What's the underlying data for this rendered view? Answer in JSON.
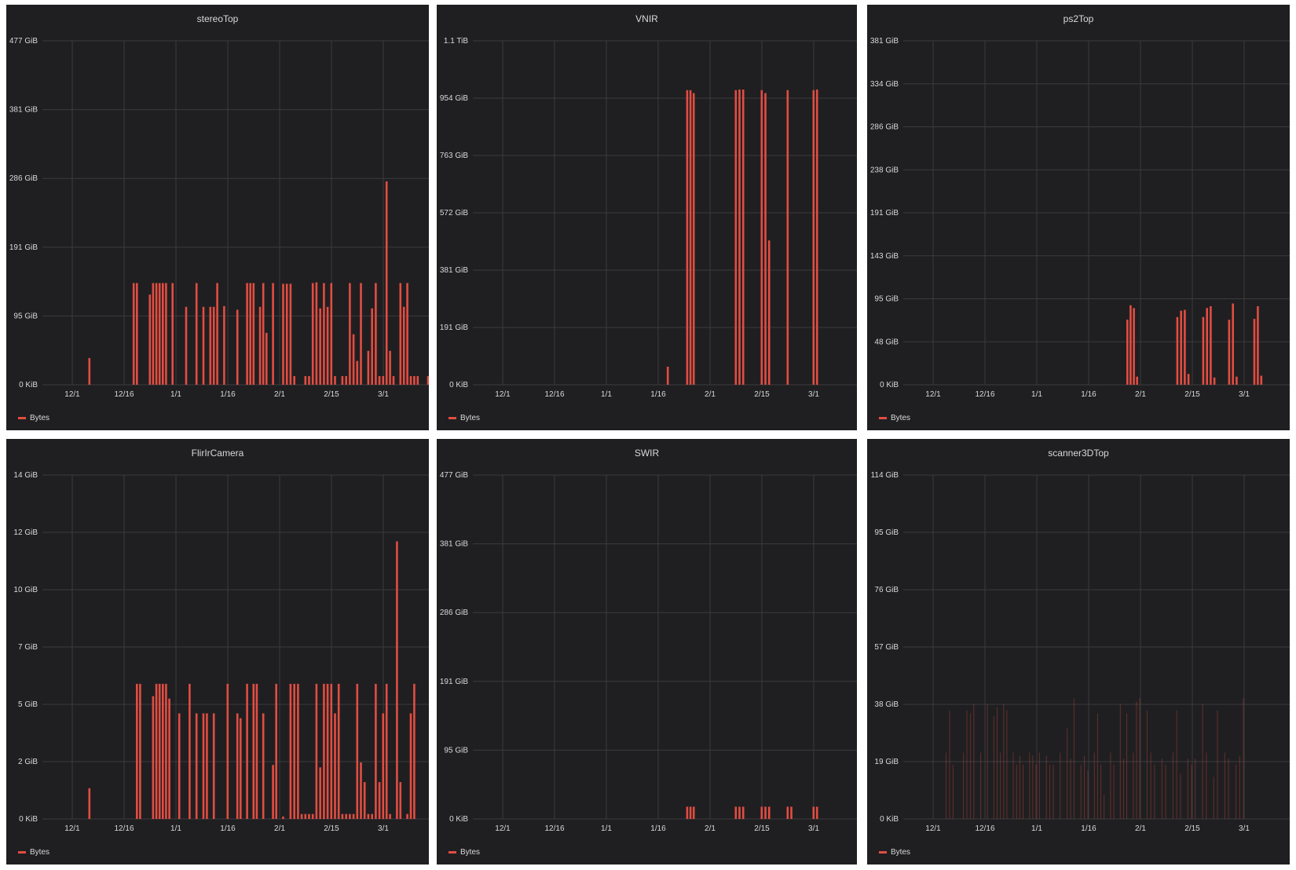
{
  "colors": {
    "series": "#e24d42",
    "panel_bg": "#1f1f21",
    "grid": "#3b3b3e",
    "text": "#d8d9da"
  },
  "chart_data": [
    {
      "type": "bar",
      "title": "stereoTop",
      "legend": "Bytes",
      "legend_position": "bottom-left",
      "grid": true,
      "x_ticks": [
        "12/1",
        "12/16",
        "1/1",
        "1/16",
        "2/1",
        "2/15",
        "3/1",
        "3/"
      ],
      "y_ticks": [
        "0 KiB",
        "95 GiB",
        "191 GiB",
        "286 GiB",
        "381 GiB",
        "477 GiB"
      ],
      "ylim": [
        0,
        477
      ],
      "y_unit": "GiB",
      "series": [
        {
          "name": "Bytes",
          "x_day": [
            5,
            18,
            19,
            23,
            24,
            25,
            26,
            27,
            28,
            30,
            34,
            37,
            39,
            41,
            42,
            43,
            45,
            49,
            52,
            53,
            54,
            56,
            57,
            58,
            60,
            63,
            64,
            65,
            66,
            69,
            70,
            71,
            72,
            73,
            74,
            75,
            76,
            77,
            79,
            80,
            81,
            82,
            83,
            84,
            86,
            87,
            88,
            89,
            90,
            91,
            92,
            93,
            95,
            96,
            97,
            98,
            99,
            100,
            103,
            104,
            106,
            108,
            109
          ],
          "values": [
            37,
            141,
            141,
            125,
            141,
            141,
            141,
            141,
            141,
            141,
            108,
            141,
            108,
            108,
            108,
            141,
            109,
            104,
            141,
            141,
            141,
            108,
            141,
            72,
            141,
            140,
            140,
            140,
            12,
            12,
            12,
            141,
            142,
            106,
            141,
            108,
            141,
            12,
            12,
            12,
            141,
            70,
            33,
            141,
            47,
            106,
            141,
            12,
            12,
            282,
            47,
            12,
            141,
            108,
            141,
            12,
            12,
            12,
            12,
            12,
            12,
            12,
            12
          ]
        }
      ]
    },
    {
      "type": "bar",
      "title": "VNIR",
      "legend": "Bytes",
      "legend_position": "bottom-left",
      "grid": true,
      "x_ticks": [
        "12/1",
        "12/16",
        "1/1",
        "1/16",
        "2/1",
        "2/15",
        "3/1",
        "3/"
      ],
      "y_ticks": [
        "0 KiB",
        "191 GiB",
        "381 GiB",
        "572 GiB",
        "763 GiB",
        "954 GiB",
        "1.1 TiB"
      ],
      "ylim": [
        0,
        1144
      ],
      "y_unit": "GiB",
      "series": [
        {
          "name": "Bytes",
          "x_day": [
            49,
            55,
            56,
            57,
            69,
            70,
            71,
            76,
            77,
            78,
            83,
            90,
            91
          ],
          "values": [
            60,
            980,
            980,
            970,
            980,
            982,
            982,
            980,
            970,
            480,
            980,
            980,
            982
          ]
        }
      ]
    },
    {
      "type": "bar",
      "title": "ps2Top",
      "legend": "Bytes",
      "legend_position": "bottom-left",
      "grid": true,
      "x_ticks": [
        "12/1",
        "12/16",
        "1/1",
        "1/16",
        "2/1",
        "2/15",
        "3/1"
      ],
      "y_ticks": [
        "0 KiB",
        "48 GiB",
        "95 GiB",
        "143 GiB",
        "191 GiB",
        "238 GiB",
        "286 GiB",
        "334 GiB",
        "381 GiB"
      ],
      "ylim": [
        0,
        381
      ],
      "y_unit": "GiB",
      "series": [
        {
          "name": "Bytes",
          "x_day": [
            58,
            59,
            60,
            61,
            72,
            73,
            74,
            75,
            79,
            80,
            81,
            82,
            86,
            87,
            88,
            93,
            94,
            95
          ],
          "values": [
            72,
            88,
            85,
            9,
            75,
            82,
            83,
            12,
            75,
            85,
            87,
            8,
            72,
            90,
            9,
            73,
            87,
            10
          ]
        }
      ]
    },
    {
      "type": "bar",
      "title": "FlirIrCamera",
      "legend": "Bytes",
      "legend_position": "bottom-left",
      "grid": true,
      "x_ticks": [
        "12/1",
        "12/16",
        "1/1",
        "1/16",
        "2/1",
        "2/15",
        "3/1",
        "3/"
      ],
      "y_ticks": [
        "0 KiB",
        "2 GiB",
        "5 GiB",
        "7 GiB",
        "10 GiB",
        "12 GiB",
        "14 GiB"
      ],
      "ylim": [
        0,
        14.0
      ],
      "y_unit": "GiB",
      "series": [
        {
          "name": "Bytes",
          "x_day": [
            5,
            19,
            20,
            24,
            25,
            26,
            27,
            28,
            29,
            32,
            35,
            37,
            39,
            40,
            42,
            46,
            49,
            50,
            52,
            54,
            55,
            57,
            60,
            61,
            63,
            65,
            66,
            67,
            68,
            69,
            70,
            71,
            72,
            73,
            74,
            75,
            76,
            77,
            78,
            79,
            80,
            81,
            82,
            83,
            84,
            85,
            86,
            87,
            88,
            89,
            90,
            91,
            92,
            94,
            95,
            97,
            98,
            99
          ],
          "values": [
            1.25,
            5.5,
            5.5,
            5.0,
            5.5,
            5.5,
            5.5,
            5.5,
            4.9,
            4.3,
            5.5,
            4.3,
            4.3,
            4.3,
            4.3,
            5.5,
            4.3,
            4.1,
            5.5,
            5.5,
            5.5,
            4.3,
            2.2,
            5.5,
            0.1,
            5.5,
            5.5,
            5.5,
            0.2,
            0.2,
            0.2,
            0.2,
            5.5,
            2.1,
            5.5,
            5.5,
            5.5,
            4.3,
            5.5,
            0.2,
            0.2,
            0.2,
            0.2,
            5.5,
            2.3,
            1.5,
            0.2,
            0.2,
            5.5,
            1.5,
            4.3,
            5.5,
            0.2,
            11.3,
            1.5,
            0.2,
            4.3,
            5.5
          ]
        }
      ]
    },
    {
      "type": "bar",
      "title": "SWIR",
      "legend": "Bytes",
      "legend_position": "bottom-left",
      "grid": true,
      "x_ticks": [
        "12/1",
        "12/16",
        "1/1",
        "1/16",
        "2/1",
        "2/15",
        "3/1",
        "3/"
      ],
      "y_ticks": [
        "0 KiB",
        "95 GiB",
        "191 GiB",
        "286 GiB",
        "381 GiB",
        "477 GiB"
      ],
      "ylim": [
        0,
        477
      ],
      "y_unit": "GiB",
      "series": [
        {
          "name": "Bytes",
          "x_day": [
            55,
            56,
            57,
            69,
            70,
            71,
            76,
            77,
            78,
            83,
            84,
            90,
            91
          ],
          "values": [
            17,
            17,
            17,
            17,
            17,
            17,
            17,
            17,
            17,
            17,
            17,
            17,
            17
          ]
        }
      ]
    },
    {
      "type": "bar",
      "title": "scanner3DTop",
      "legend": "Bytes",
      "legend_position": "bottom-left",
      "grid": true,
      "x_ticks": [
        "12/1",
        "12/16",
        "1/1",
        "1/16",
        "2/1",
        "2/15",
        "3/1"
      ],
      "y_ticks": [
        "0 KiB",
        "19 GiB",
        "38 GiB",
        "57 GiB",
        "76 GiB",
        "95 GiB",
        "114 GiB"
      ],
      "ylim": [
        0,
        114
      ],
      "y_unit": "GiB",
      "series": [
        {
          "name": "Bytes",
          "x_day": [
            4,
            5,
            6,
            9,
            10,
            11,
            12,
            14,
            16,
            18,
            19,
            20,
            21,
            22,
            24,
            25,
            26,
            27,
            29,
            30,
            31,
            32,
            34,
            35,
            36,
            38,
            40,
            41,
            42,
            44,
            45,
            46,
            48,
            49,
            50,
            51,
            53,
            54,
            56,
            57,
            58,
            60,
            61,
            62,
            64,
            65,
            66,
            68,
            69,
            71,
            72,
            73,
            75,
            76,
            77,
            79,
            80,
            82,
            83,
            85,
            86,
            88,
            89,
            90
          ],
          "values": [
            22,
            36,
            18,
            22,
            36,
            35,
            38,
            22,
            38,
            34,
            37,
            22,
            38,
            36,
            22,
            18,
            21,
            18,
            22,
            21,
            18,
            22,
            21,
            18,
            18,
            22,
            30,
            20,
            40,
            18,
            21,
            16,
            22,
            35,
            18,
            8,
            22,
            18,
            38,
            20,
            35,
            22,
            39,
            40,
            36,
            22,
            18,
            20,
            18,
            22,
            36,
            15,
            20,
            18,
            20,
            38,
            22,
            14,
            36,
            22,
            20,
            18,
            21,
            40
          ]
        }
      ]
    }
  ]
}
